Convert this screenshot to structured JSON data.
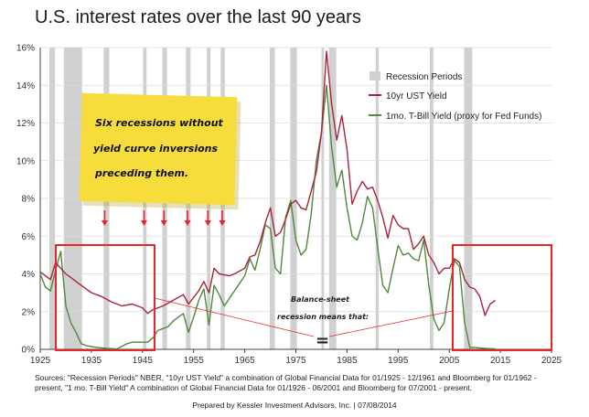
{
  "title": "U.S. interest rates over the last 90 years",
  "legend": {
    "recession": "Recession Periods",
    "ust": "10yr UST Yield",
    "tbill": "1mo. T-Bill Yield (proxy for Fed Funds)"
  },
  "note": {
    "lines": [
      "Six recessions without",
      "yield curve inversions",
      "preceding them."
    ]
  },
  "annotation": {
    "line1": "Balance-sheet",
    "line2": "recession means that:",
    "symbol": "="
  },
  "sources": "Sources: \"Recession Periods\" NBER, \"10yr UST Yield\" a combination of Global Financial Data for 01/1925 - 12/1961 and Bloomberg for 01/1962 - present, \"1 mo. T-Bill Yield\" A combination of Global Financial Data for 01/1926 - 06/2001 and Bloomberg for 07/2001 - present.",
  "prepared": "Prepared by Kessler Investment Advisors, Inc. | 07/08/2014",
  "colors": {
    "ust": "#a8243a",
    "tbill": "#4f8a3a",
    "recession": "#d0d0d0",
    "highlight_box": "#e8262a",
    "note_bg": "#f7dd3c",
    "arrow": "#e8262a"
  },
  "chart_data": {
    "type": "line",
    "title": "U.S. interest rates over the last 90 years",
    "xlabel": "",
    "ylabel": "",
    "xlim": [
      1925,
      2025
    ],
    "ylim": [
      0,
      16
    ],
    "x_ticks": [
      "1925",
      "1935",
      "1945",
      "1955",
      "1965",
      "1975",
      "1985",
      "1995",
      "2005",
      "2015",
      "2025"
    ],
    "y_ticks": [
      "0%",
      "2%",
      "4%",
      "6%",
      "8%",
      "10%",
      "12%",
      "14%",
      "16%"
    ],
    "grid": "horizontal",
    "legend_position": "top-right",
    "recession_periods": [
      [
        1926.8,
        1927.9
      ],
      [
        1929.6,
        1933.2
      ],
      [
        1937.4,
        1938.5
      ],
      [
        1945.1,
        1945.8
      ],
      [
        1948.9,
        1949.8
      ],
      [
        1953.5,
        1954.4
      ],
      [
        1957.6,
        1958.3
      ],
      [
        1960.3,
        1961.1
      ],
      [
        1969.9,
        1970.9
      ],
      [
        1973.9,
        1975.2
      ],
      [
        1980.0,
        1980.5
      ],
      [
        1981.5,
        1982.9
      ],
      [
        1990.6,
        1991.2
      ],
      [
        2001.2,
        2001.9
      ],
      [
        2007.9,
        2009.5
      ]
    ],
    "series": [
      {
        "name": "10yr UST Yield",
        "points": [
          [
            1925,
            4.1
          ],
          [
            1927,
            3.7
          ],
          [
            1928,
            4.6
          ],
          [
            1929,
            4.3
          ],
          [
            1930,
            4.0
          ],
          [
            1931,
            3.8
          ],
          [
            1932,
            3.6
          ],
          [
            1933,
            3.4
          ],
          [
            1935,
            3.0
          ],
          [
            1937,
            2.8
          ],
          [
            1939,
            2.5
          ],
          [
            1941,
            2.3
          ],
          [
            1943,
            2.4
          ],
          [
            1945,
            2.2
          ],
          [
            1946,
            1.9
          ],
          [
            1947,
            2.1
          ],
          [
            1949,
            2.3
          ],
          [
            1951,
            2.6
          ],
          [
            1953,
            2.9
          ],
          [
            1954,
            2.4
          ],
          [
            1956,
            3.1
          ],
          [
            1957,
            3.6
          ],
          [
            1958,
            3.0
          ],
          [
            1959,
            4.3
          ],
          [
            1960,
            4.0
          ],
          [
            1962,
            3.9
          ],
          [
            1963,
            4.0
          ],
          [
            1965,
            4.3
          ],
          [
            1966,
            4.9
          ],
          [
            1967,
            5.0
          ],
          [
            1968,
            5.7
          ],
          [
            1969,
            6.7
          ],
          [
            1970,
            7.5
          ],
          [
            1971,
            6.0
          ],
          [
            1972,
            6.2
          ],
          [
            1973,
            6.9
          ],
          [
            1974,
            7.7
          ],
          [
            1975,
            7.9
          ],
          [
            1976,
            7.5
          ],
          [
            1977,
            7.4
          ],
          [
            1978,
            8.4
          ],
          [
            1979,
            9.4
          ],
          [
            1980,
            11.5
          ],
          [
            1981,
            15.8
          ],
          [
            1982,
            13.0
          ],
          [
            1983,
            11.1
          ],
          [
            1984,
            12.4
          ],
          [
            1985,
            10.6
          ],
          [
            1986,
            7.7
          ],
          [
            1987,
            8.4
          ],
          [
            1988,
            8.9
          ],
          [
            1989,
            8.5
          ],
          [
            1990,
            8.6
          ],
          [
            1991,
            7.9
          ],
          [
            1992,
            7.0
          ],
          [
            1993,
            5.9
          ],
          [
            1994,
            7.1
          ],
          [
            1995,
            6.6
          ],
          [
            1996,
            6.4
          ],
          [
            1997,
            6.4
          ],
          [
            1998,
            5.3
          ],
          [
            1999,
            5.6
          ],
          [
            2000,
            6.0
          ],
          [
            2001,
            5.0
          ],
          [
            2002,
            4.6
          ],
          [
            2003,
            4.0
          ],
          [
            2004,
            4.3
          ],
          [
            2005,
            4.3
          ],
          [
            2006,
            4.8
          ],
          [
            2007,
            4.6
          ],
          [
            2008,
            3.7
          ],
          [
            2009,
            3.3
          ],
          [
            2010,
            3.2
          ],
          [
            2011,
            2.8
          ],
          [
            2012,
            1.8
          ],
          [
            2013,
            2.4
          ],
          [
            2014,
            2.6
          ]
        ]
      },
      {
        "name": "1mo. T-Bill Yield (proxy for Fed Funds)",
        "points": [
          [
            1925,
            4.0
          ],
          [
            1926,
            3.3
          ],
          [
            1927,
            3.1
          ],
          [
            1928,
            4.2
          ],
          [
            1929,
            5.2
          ],
          [
            1930,
            2.3
          ],
          [
            1931,
            1.4
          ],
          [
            1932,
            0.9
          ],
          [
            1933,
            0.3
          ],
          [
            1934,
            0.2
          ],
          [
            1936,
            0.1
          ],
          [
            1938,
            0.05
          ],
          [
            1940,
            0.02
          ],
          [
            1942,
            0.3
          ],
          [
            1943,
            0.38
          ],
          [
            1945,
            0.38
          ],
          [
            1946,
            0.38
          ],
          [
            1947,
            0.6
          ],
          [
            1948,
            1.0
          ],
          [
            1949,
            1.1
          ],
          [
            1950,
            1.2
          ],
          [
            1951,
            1.5
          ],
          [
            1952,
            1.7
          ],
          [
            1953,
            1.9
          ],
          [
            1954,
            0.9
          ],
          [
            1955,
            1.7
          ],
          [
            1956,
            2.6
          ],
          [
            1957,
            3.2
          ],
          [
            1958,
            1.3
          ],
          [
            1959,
            3.4
          ],
          [
            1960,
            2.9
          ],
          [
            1961,
            2.3
          ],
          [
            1962,
            2.7
          ],
          [
            1963,
            3.1
          ],
          [
            1964,
            3.5
          ],
          [
            1965,
            3.9
          ],
          [
            1966,
            4.8
          ],
          [
            1967,
            4.2
          ],
          [
            1968,
            5.3
          ],
          [
            1969,
            6.6
          ],
          [
            1970,
            6.4
          ],
          [
            1971,
            4.3
          ],
          [
            1972,
            4.0
          ],
          [
            1973,
            7.0
          ],
          [
            1974,
            7.9
          ],
          [
            1975,
            5.8
          ],
          [
            1976,
            5.0
          ],
          [
            1977,
            5.3
          ],
          [
            1978,
            7.2
          ],
          [
            1979,
            10.0
          ],
          [
            1980,
            11.5
          ],
          [
            1981,
            14.0
          ],
          [
            1982,
            10.7
          ],
          [
            1983,
            8.6
          ],
          [
            1984,
            9.5
          ],
          [
            1985,
            7.5
          ],
          [
            1986,
            6.0
          ],
          [
            1987,
            5.8
          ],
          [
            1988,
            6.7
          ],
          [
            1989,
            8.1
          ],
          [
            1990,
            7.5
          ],
          [
            1991,
            5.4
          ],
          [
            1992,
            3.4
          ],
          [
            1993,
            3.0
          ],
          [
            1994,
            4.3
          ],
          [
            1995,
            5.5
          ],
          [
            1996,
            5.0
          ],
          [
            1997,
            5.1
          ],
          [
            1998,
            4.8
          ],
          [
            1999,
            4.7
          ],
          [
            2000,
            5.8
          ],
          [
            2001,
            3.4
          ],
          [
            2002,
            1.6
          ],
          [
            2003,
            1.0
          ],
          [
            2004,
            1.4
          ],
          [
            2005,
            3.2
          ],
          [
            2006,
            4.7
          ],
          [
            2007,
            4.4
          ],
          [
            2008,
            1.4
          ],
          [
            2009,
            0.1
          ],
          [
            2010,
            0.1
          ],
          [
            2012,
            0.05
          ],
          [
            2014,
            0.03
          ]
        ]
      }
    ]
  }
}
